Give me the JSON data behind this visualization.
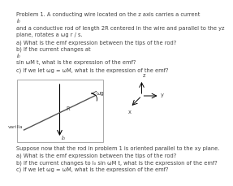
{
  "line1": "Problem 1. A conducting wire located on the z axis carries a current",
  "line2": "I₀",
  "line3": "and a conductive rod of length 2R centered in the wire and parallel to the yz",
  "line4": "plane, rotates a ωg r / s.",
  "line5": "a) What is the emf expression between the tips of the rod?",
  "line6": "b) If the current changes at",
  "line7": "I₀",
  "line8": "sin ωM t, what is the expression of the emf?",
  "line9": "c) If we let ωg = ωM, what is the expression of the emf?",
  "footer1": "Suppose now that the rod in problem 1 is oriented parallel to the xy plane.",
  "footer2": "a) What is the emf expression between the tips of the rod?",
  "footer3": "b) If the current changes to I₀ sin ωM t, what is the expression of the emf?",
  "footer4": "c) If we let ωg = ωM, what is the expression of the emf?",
  "bg_color": "#ffffff",
  "text_color": "#404040",
  "box_edge_color": "#aaaaaa",
  "label_Io": "I₀",
  "label_R": "R",
  "label_varilla": "varilla",
  "label_wg": "ωg",
  "fs": 4.8
}
